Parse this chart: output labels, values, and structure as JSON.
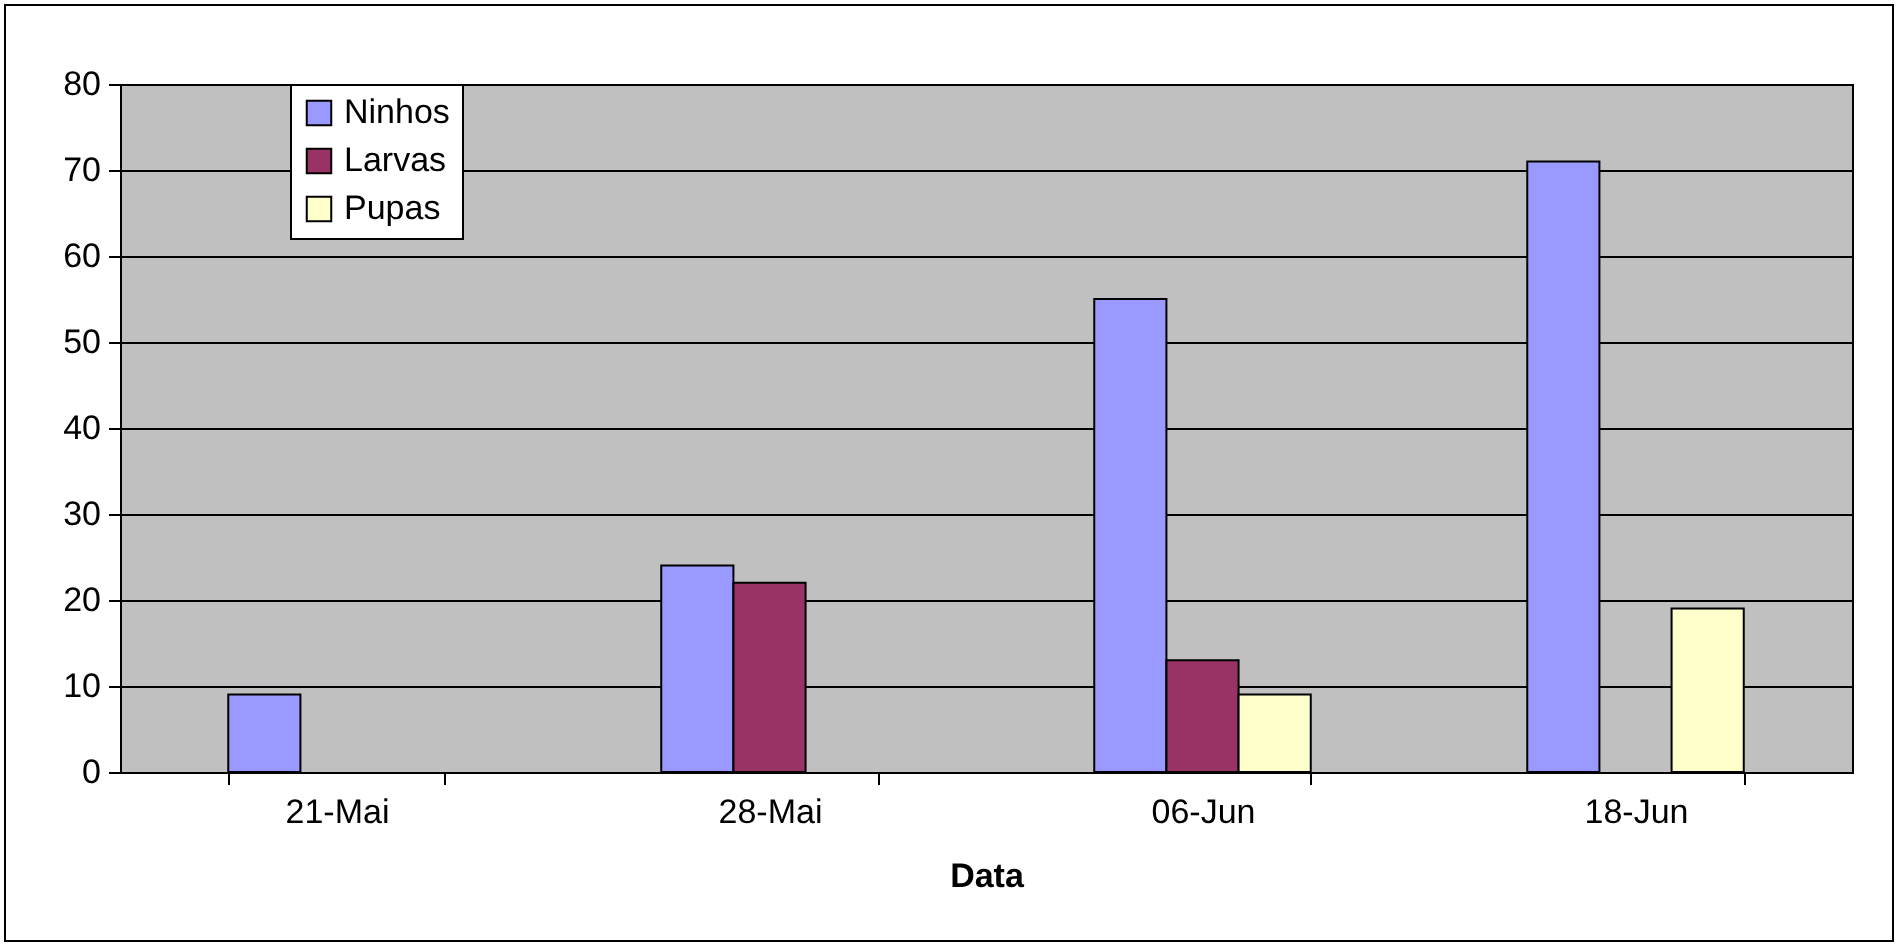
{
  "chart_data": {
    "type": "bar",
    "xlabel": "Data",
    "categories": [
      "21-Mai",
      "28-Mai",
      "06-Jun",
      "18-Jun"
    ],
    "series": [
      {
        "name": "Ninhos",
        "color": "#9999ff",
        "values": [
          9,
          24,
          55,
          71
        ]
      },
      {
        "name": "Larvas",
        "color": "#993366",
        "values": [
          null,
          22,
          13,
          null
        ]
      },
      {
        "name": "Pupas",
        "color": "#ffffcc",
        "values": [
          null,
          null,
          9,
          19
        ]
      }
    ],
    "ylim": [
      0,
      80
    ],
    "yticks": [
      0,
      10,
      20,
      30,
      40,
      50,
      60,
      70,
      80
    ],
    "grid": "y",
    "legend": "top left"
  }
}
